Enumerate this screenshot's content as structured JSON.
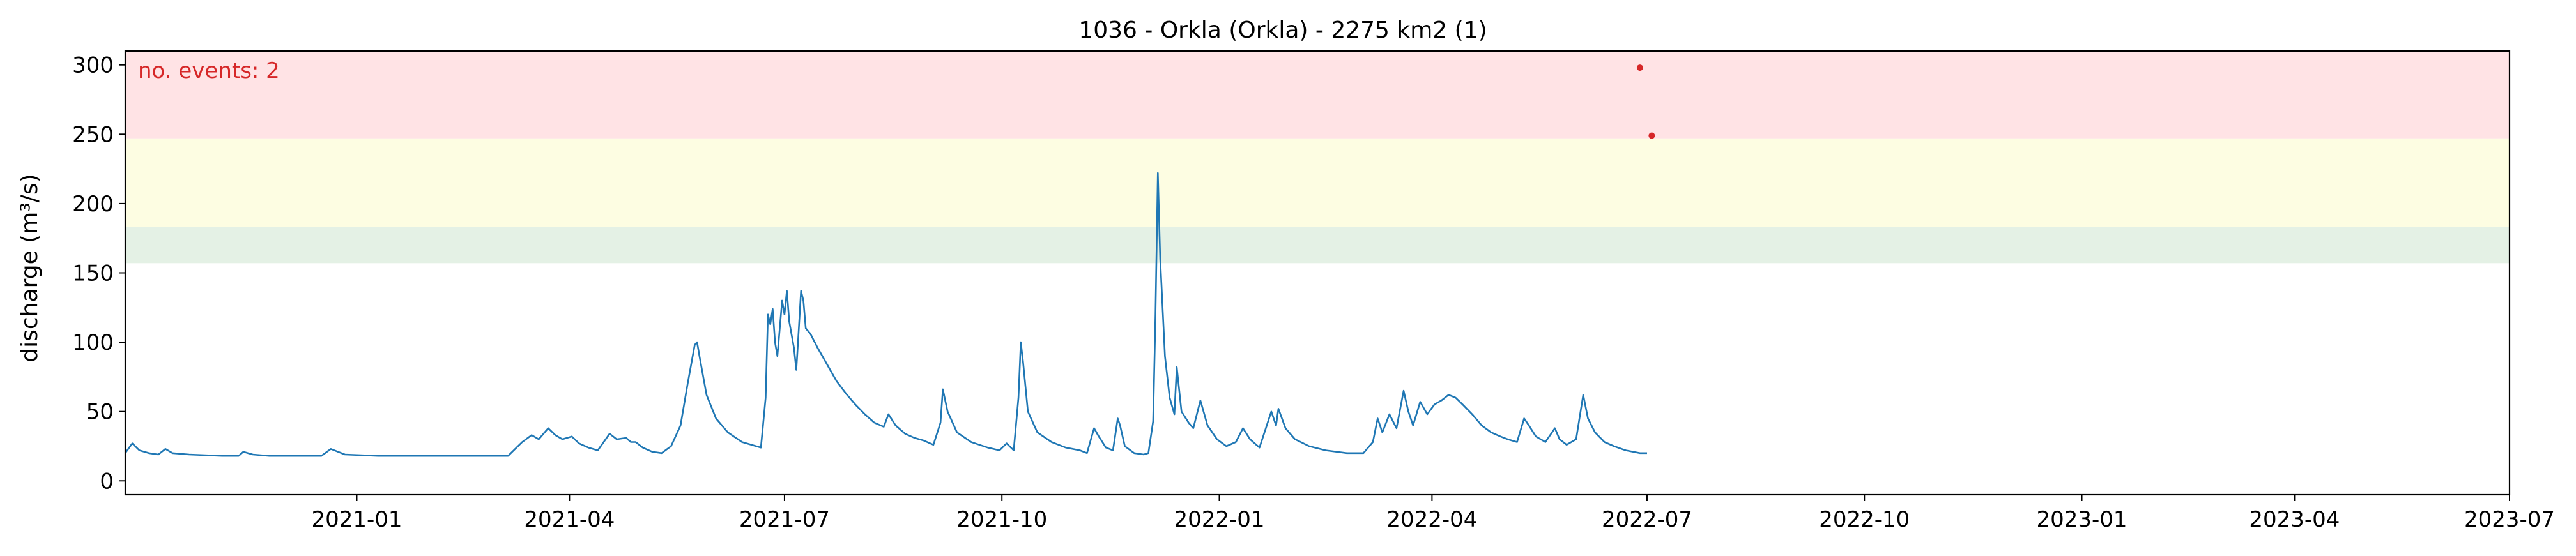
{
  "chart_data": {
    "type": "line",
    "title": "1036 - Orkla (Orkla) - 2275 km2 (1)",
    "xlabel": "",
    "ylabel": "discharge (m³/s)",
    "xlim": [
      "2020-09-25",
      "2023-07-01"
    ],
    "ylim": [
      -10,
      310
    ],
    "x_ticks": [
      "2021-01",
      "2021-04",
      "2021-07",
      "2021-10",
      "2022-01",
      "2022-04",
      "2022-07",
      "2022-10",
      "2023-01",
      "2023-04",
      "2023-07"
    ],
    "y_ticks": [
      0,
      50,
      100,
      150,
      200,
      250,
      300
    ],
    "grid": false,
    "annotation": "no. events: 2",
    "colors": {
      "line": "#1f77b4",
      "event": "#d62728",
      "annotation": "#d62728",
      "band_red": "#ffe3e5",
      "band_yellow": "#fdfde2",
      "band_green": "#e4f1e5"
    },
    "threshold_bands": [
      {
        "name": "red",
        "from": 247,
        "to": 310
      },
      {
        "name": "yellow",
        "from": 183,
        "to": 247
      },
      {
        "name": "green",
        "from": 157,
        "to": 183
      }
    ],
    "series": [
      {
        "points": [
          [
            "2020-09-25",
            20
          ],
          [
            "2020-09-28",
            27
          ],
          [
            "2020-10-01",
            22
          ],
          [
            "2020-10-05",
            20
          ],
          [
            "2020-10-09",
            19
          ],
          [
            "2020-10-12",
            23
          ],
          [
            "2020-10-15",
            20
          ],
          [
            "2020-10-22",
            19
          ],
          [
            "2020-11-05",
            18
          ],
          [
            "2020-11-12",
            18
          ],
          [
            "2020-11-14",
            21
          ],
          [
            "2020-11-18",
            19
          ],
          [
            "2020-11-25",
            18
          ],
          [
            "2020-12-10",
            18
          ],
          [
            "2020-12-17",
            18
          ],
          [
            "2020-12-21",
            23
          ],
          [
            "2020-12-27",
            19
          ],
          [
            "2021-01-10",
            18
          ],
          [
            "2021-02-01",
            18
          ],
          [
            "2021-02-20",
            18
          ],
          [
            "2021-03-06",
            18
          ],
          [
            "2021-03-12",
            28
          ],
          [
            "2021-03-16",
            33
          ],
          [
            "2021-03-19",
            30
          ],
          [
            "2021-03-23",
            38
          ],
          [
            "2021-03-26",
            33
          ],
          [
            "2021-03-29",
            30
          ],
          [
            "2021-04-02",
            32
          ],
          [
            "2021-04-05",
            27
          ],
          [
            "2021-04-09",
            24
          ],
          [
            "2021-04-13",
            22
          ],
          [
            "2021-04-18",
            34
          ],
          [
            "2021-04-21",
            30
          ],
          [
            "2021-04-25",
            31
          ],
          [
            "2021-04-27",
            28
          ],
          [
            "2021-04-29",
            28
          ],
          [
            "2021-05-02",
            24
          ],
          [
            "2021-05-06",
            21
          ],
          [
            "2021-05-10",
            20
          ],
          [
            "2021-05-14",
            25
          ],
          [
            "2021-05-18",
            40
          ],
          [
            "2021-05-21",
            70
          ],
          [
            "2021-05-24",
            98
          ],
          [
            "2021-05-25",
            100
          ],
          [
            "2021-05-26",
            90
          ],
          [
            "2021-05-29",
            62
          ],
          [
            "2021-06-02",
            45
          ],
          [
            "2021-06-07",
            35
          ],
          [
            "2021-06-13",
            28
          ],
          [
            "2021-06-19",
            25
          ],
          [
            "2021-06-21",
            24
          ],
          [
            "2021-06-23",
            60
          ],
          [
            "2021-06-24",
            120
          ],
          [
            "2021-06-25",
            113
          ],
          [
            "2021-06-26",
            124
          ],
          [
            "2021-06-27",
            100
          ],
          [
            "2021-06-28",
            90
          ],
          [
            "2021-06-29",
            110
          ],
          [
            "2021-06-30",
            130
          ],
          [
            "2021-07-01",
            120
          ],
          [
            "2021-07-02",
            137
          ],
          [
            "2021-07-03",
            115
          ],
          [
            "2021-07-05",
            96
          ],
          [
            "2021-07-06",
            80
          ],
          [
            "2021-07-07",
            108
          ],
          [
            "2021-07-08",
            137
          ],
          [
            "2021-07-09",
            130
          ],
          [
            "2021-07-10",
            110
          ],
          [
            "2021-07-12",
            106
          ],
          [
            "2021-07-15",
            96
          ],
          [
            "2021-07-19",
            84
          ],
          [
            "2021-07-23",
            72
          ],
          [
            "2021-07-27",
            63
          ],
          [
            "2021-07-31",
            55
          ],
          [
            "2021-08-04",
            48
          ],
          [
            "2021-08-08",
            42
          ],
          [
            "2021-08-12",
            39
          ],
          [
            "2021-08-14",
            48
          ],
          [
            "2021-08-17",
            40
          ],
          [
            "2021-08-21",
            34
          ],
          [
            "2021-08-25",
            31
          ],
          [
            "2021-08-29",
            29
          ],
          [
            "2021-09-02",
            26
          ],
          [
            "2021-09-05",
            42
          ],
          [
            "2021-09-06",
            66
          ],
          [
            "2021-09-08",
            50
          ],
          [
            "2021-09-12",
            35
          ],
          [
            "2021-09-18",
            28
          ],
          [
            "2021-09-25",
            24
          ],
          [
            "2021-09-30",
            22
          ],
          [
            "2021-10-03",
            27
          ],
          [
            "2021-10-06",
            22
          ],
          [
            "2021-10-08",
            60
          ],
          [
            "2021-10-09",
            100
          ],
          [
            "2021-10-10",
            85
          ],
          [
            "2021-10-12",
            50
          ],
          [
            "2021-10-16",
            35
          ],
          [
            "2021-10-22",
            28
          ],
          [
            "2021-10-28",
            24
          ],
          [
            "2021-11-03",
            22
          ],
          [
            "2021-11-06",
            20
          ],
          [
            "2021-11-09",
            38
          ],
          [
            "2021-11-11",
            32
          ],
          [
            "2021-11-14",
            24
          ],
          [
            "2021-11-17",
            22
          ],
          [
            "2021-11-19",
            45
          ],
          [
            "2021-11-20",
            40
          ],
          [
            "2021-11-22",
            25
          ],
          [
            "2021-11-26",
            20
          ],
          [
            "2021-11-30",
            19
          ],
          [
            "2021-12-02",
            20
          ],
          [
            "2021-12-04",
            43
          ],
          [
            "2021-12-05",
            120
          ],
          [
            "2021-12-06",
            222
          ],
          [
            "2021-12-07",
            160
          ],
          [
            "2021-12-09",
            90
          ],
          [
            "2021-12-11",
            60
          ],
          [
            "2021-12-13",
            48
          ],
          [
            "2021-12-14",
            82
          ],
          [
            "2021-12-16",
            50
          ],
          [
            "2021-12-19",
            42
          ],
          [
            "2021-12-21",
            38
          ],
          [
            "2021-12-24",
            58
          ],
          [
            "2021-12-27",
            40
          ],
          [
            "2021-12-31",
            30
          ],
          [
            "2022-01-04",
            25
          ],
          [
            "2022-01-08",
            28
          ],
          [
            "2022-01-11",
            38
          ],
          [
            "2022-01-14",
            30
          ],
          [
            "2022-01-18",
            24
          ],
          [
            "2022-01-23",
            50
          ],
          [
            "2022-01-25",
            40
          ],
          [
            "2022-01-26",
            52
          ],
          [
            "2022-01-29",
            38
          ],
          [
            "2022-02-02",
            30
          ],
          [
            "2022-02-08",
            25
          ],
          [
            "2022-02-15",
            22
          ],
          [
            "2022-02-24",
            20
          ],
          [
            "2022-03-03",
            20
          ],
          [
            "2022-03-07",
            28
          ],
          [
            "2022-03-09",
            45
          ],
          [
            "2022-03-11",
            35
          ],
          [
            "2022-03-14",
            48
          ],
          [
            "2022-03-17",
            38
          ],
          [
            "2022-03-20",
            65
          ],
          [
            "2022-03-22",
            50
          ],
          [
            "2022-03-24",
            40
          ],
          [
            "2022-03-27",
            57
          ],
          [
            "2022-03-30",
            48
          ],
          [
            "2022-04-02",
            55
          ],
          [
            "2022-04-05",
            58
          ],
          [
            "2022-04-08",
            62
          ],
          [
            "2022-04-11",
            60
          ],
          [
            "2022-04-14",
            55
          ],
          [
            "2022-04-18",
            48
          ],
          [
            "2022-04-22",
            40
          ],
          [
            "2022-04-26",
            35
          ],
          [
            "2022-04-30",
            32
          ],
          [
            "2022-05-03",
            30
          ],
          [
            "2022-05-07",
            28
          ],
          [
            "2022-05-10",
            45
          ],
          [
            "2022-05-12",
            40
          ],
          [
            "2022-05-15",
            32
          ],
          [
            "2022-05-19",
            28
          ],
          [
            "2022-05-23",
            38
          ],
          [
            "2022-05-25",
            30
          ],
          [
            "2022-05-28",
            26
          ],
          [
            "2022-06-01",
            30
          ],
          [
            "2022-06-04",
            62
          ],
          [
            "2022-06-06",
            45
          ],
          [
            "2022-06-09",
            35
          ],
          [
            "2022-06-13",
            28
          ],
          [
            "2022-06-17",
            25
          ],
          [
            "2022-06-22",
            22
          ],
          [
            "2022-06-28",
            20
          ],
          [
            "2022-07-01",
            20
          ]
        ]
      }
    ],
    "events": [
      {
        "date": "2022-06-28",
        "value": 298
      },
      {
        "date": "2022-07-03",
        "value": 249
      }
    ]
  }
}
